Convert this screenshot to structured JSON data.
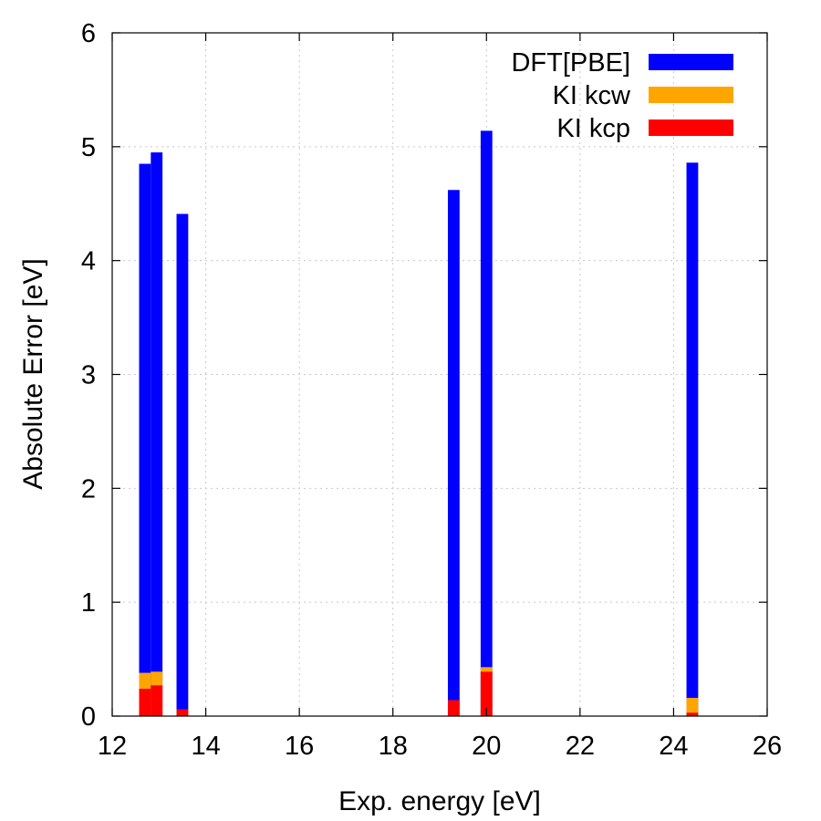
{
  "chart_data": {
    "type": "bar",
    "stacked": false,
    "overlay": true,
    "xlabel": "Exp. energy [eV]",
    "ylabel": "Absolute Error [eV]",
    "xlim": [
      12,
      26
    ],
    "ylim": [
      0,
      6
    ],
    "xticks": [
      12,
      14,
      16,
      18,
      20,
      22,
      24,
      26
    ],
    "yticks": [
      0,
      1,
      2,
      3,
      4,
      5,
      6
    ],
    "grid": true,
    "legend_position": "top-right",
    "bar_width": 0.25,
    "x": [
      12.7,
      12.95,
      13.5,
      19.3,
      20.0,
      24.4
    ],
    "series": [
      {
        "name": "DFT[PBE]",
        "color": "#0000ff",
        "values": [
          4.85,
          4.95,
          4.41,
          4.62,
          5.14,
          4.86
        ]
      },
      {
        "name": "KI kcw",
        "color": "#ffa500",
        "values": [
          0.38,
          0.39,
          0.06,
          0.14,
          0.43,
          0.16
        ]
      },
      {
        "name": "KI kcp",
        "color": "#ff0000",
        "values": [
          0.24,
          0.27,
          0.06,
          0.14,
          0.39,
          0.03
        ]
      }
    ]
  }
}
